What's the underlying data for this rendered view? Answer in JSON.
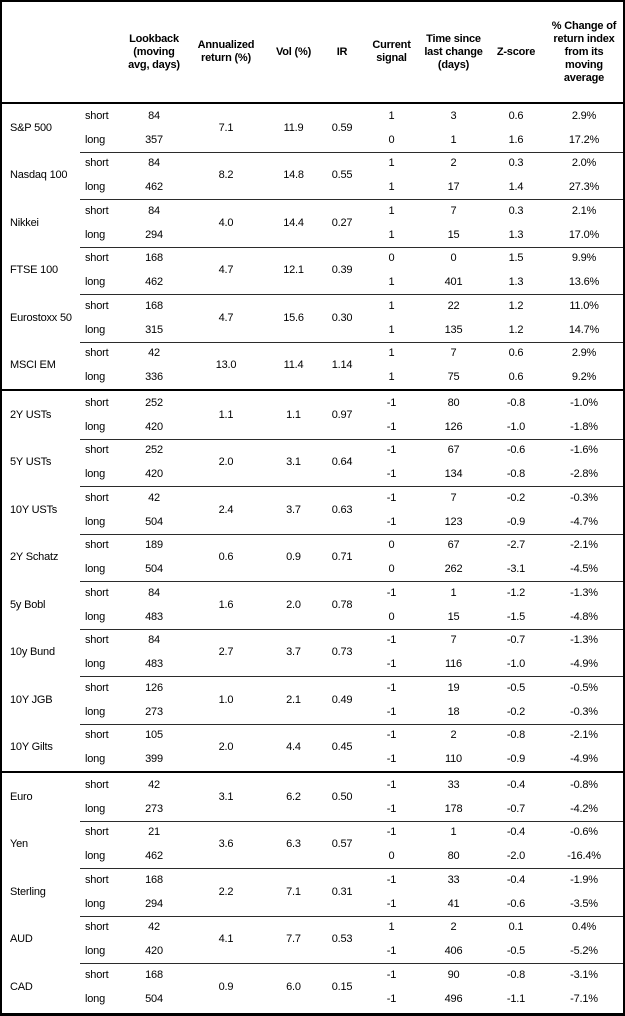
{
  "table": {
    "header": {
      "asset": "",
      "leg": "",
      "lookback": "Lookback (moving avg, days)",
      "annualized": "Annualized return (%)",
      "vol": "Vol (%)",
      "ir": "IR",
      "signal": "Current signal",
      "time_since": "Time since last change (days)",
      "zscore": "Z-score",
      "pct_change": "% Change of return index from its moving average"
    },
    "row_labels": [
      "short",
      "long"
    ],
    "sections": [
      {
        "id": "equities",
        "assets": [
          {
            "name": "S&P 500",
            "annualized_return": "7.1",
            "vol": "11.9",
            "ir": "0.59",
            "legs": [
              {
                "label": "short",
                "lookback": "84",
                "signal": "1",
                "time_since": "3",
                "zscore": "0.6",
                "pct_change": "2.9%"
              },
              {
                "label": "long",
                "lookback": "357",
                "signal": "0",
                "time_since": "1",
                "zscore": "1.6",
                "pct_change": "17.2%"
              }
            ]
          },
          {
            "name": "Nasdaq 100",
            "annualized_return": "8.2",
            "vol": "14.8",
            "ir": "0.55",
            "legs": [
              {
                "label": "short",
                "lookback": "84",
                "signal": "1",
                "time_since": "2",
                "zscore": "0.3",
                "pct_change": "2.0%"
              },
              {
                "label": "long",
                "lookback": "462",
                "signal": "1",
                "time_since": "17",
                "zscore": "1.4",
                "pct_change": "27.3%"
              }
            ]
          },
          {
            "name": "Nikkei",
            "annualized_return": "4.0",
            "vol": "14.4",
            "ir": "0.27",
            "legs": [
              {
                "label": "short",
                "lookback": "84",
                "signal": "1",
                "time_since": "7",
                "zscore": "0.3",
                "pct_change": "2.1%"
              },
              {
                "label": "long",
                "lookback": "294",
                "signal": "1",
                "time_since": "15",
                "zscore": "1.3",
                "pct_change": "17.0%"
              }
            ]
          },
          {
            "name": "FTSE 100",
            "annualized_return": "4.7",
            "vol": "12.1",
            "ir": "0.39",
            "legs": [
              {
                "label": "short",
                "lookback": "168",
                "signal": "0",
                "time_since": "0",
                "zscore": "1.5",
                "pct_change": "9.9%"
              },
              {
                "label": "long",
                "lookback": "462",
                "signal": "1",
                "time_since": "401",
                "zscore": "1.3",
                "pct_change": "13.6%"
              }
            ]
          },
          {
            "name": "Eurostoxx 50",
            "annualized_return": "4.7",
            "vol": "15.6",
            "ir": "0.30",
            "legs": [
              {
                "label": "short",
                "lookback": "168",
                "signal": "1",
                "time_since": "22",
                "zscore": "1.2",
                "pct_change": "11.0%"
              },
              {
                "label": "long",
                "lookback": "315",
                "signal": "1",
                "time_since": "135",
                "zscore": "1.2",
                "pct_change": "14.7%"
              }
            ]
          },
          {
            "name": "MSCI EM",
            "annualized_return": "13.0",
            "vol": "11.4",
            "ir": "1.14",
            "legs": [
              {
                "label": "short",
                "lookback": "42",
                "signal": "1",
                "time_since": "7",
                "zscore": "0.6",
                "pct_change": "2.9%"
              },
              {
                "label": "long",
                "lookback": "336",
                "signal": "1",
                "time_since": "75",
                "zscore": "0.6",
                "pct_change": "9.2%"
              }
            ]
          }
        ]
      },
      {
        "id": "bonds",
        "assets": [
          {
            "name": "2Y USTs",
            "annualized_return": "1.1",
            "vol": "1.1",
            "ir": "0.97",
            "legs": [
              {
                "label": "short",
                "lookback": "252",
                "signal": "-1",
                "time_since": "80",
                "zscore": "-0.8",
                "pct_change": "-1.0%"
              },
              {
                "label": "long",
                "lookback": "420",
                "signal": "-1",
                "time_since": "126",
                "zscore": "-1.0",
                "pct_change": "-1.8%"
              }
            ]
          },
          {
            "name": "5Y USTs",
            "annualized_return": "2.0",
            "vol": "3.1",
            "ir": "0.64",
            "legs": [
              {
                "label": "short",
                "lookback": "252",
                "signal": "-1",
                "time_since": "67",
                "zscore": "-0.6",
                "pct_change": "-1.6%"
              },
              {
                "label": "long",
                "lookback": "420",
                "signal": "-1",
                "time_since": "134",
                "zscore": "-0.8",
                "pct_change": "-2.8%"
              }
            ]
          },
          {
            "name": "10Y USTs",
            "annualized_return": "2.4",
            "vol": "3.7",
            "ir": "0.63",
            "legs": [
              {
                "label": "short",
                "lookback": "42",
                "signal": "-1",
                "time_since": "7",
                "zscore": "-0.2",
                "pct_change": "-0.3%"
              },
              {
                "label": "long",
                "lookback": "504",
                "signal": "-1",
                "time_since": "123",
                "zscore": "-0.9",
                "pct_change": "-4.7%"
              }
            ]
          },
          {
            "name": "2Y Schatz",
            "annualized_return": "0.6",
            "vol": "0.9",
            "ir": "0.71",
            "legs": [
              {
                "label": "short",
                "lookback": "189",
                "signal": "0",
                "time_since": "67",
                "zscore": "-2.7",
                "pct_change": "-2.1%"
              },
              {
                "label": "long",
                "lookback": "504",
                "signal": "0",
                "time_since": "262",
                "zscore": "-3.1",
                "pct_change": "-4.5%"
              }
            ]
          },
          {
            "name": "5y Bobl",
            "annualized_return": "1.6",
            "vol": "2.0",
            "ir": "0.78",
            "legs": [
              {
                "label": "short",
                "lookback": "84",
                "signal": "-1",
                "time_since": "1",
                "zscore": "-1.2",
                "pct_change": "-1.3%"
              },
              {
                "label": "long",
                "lookback": "483",
                "signal": "0",
                "time_since": "15",
                "zscore": "-1.5",
                "pct_change": "-4.8%"
              }
            ]
          },
          {
            "name": "10y Bund",
            "annualized_return": "2.7",
            "vol": "3.7",
            "ir": "0.73",
            "legs": [
              {
                "label": "short",
                "lookback": "84",
                "signal": "-1",
                "time_since": "7",
                "zscore": "-0.7",
                "pct_change": "-1.3%"
              },
              {
                "label": "long",
                "lookback": "483",
                "signal": "-1",
                "time_since": "116",
                "zscore": "-1.0",
                "pct_change": "-4.9%"
              }
            ]
          },
          {
            "name": "10Y JGB",
            "annualized_return": "1.0",
            "vol": "2.1",
            "ir": "0.49",
            "legs": [
              {
                "label": "short",
                "lookback": "126",
                "signal": "-1",
                "time_since": "19",
                "zscore": "-0.5",
                "pct_change": "-0.5%"
              },
              {
                "label": "long",
                "lookback": "273",
                "signal": "-1",
                "time_since": "18",
                "zscore": "-0.2",
                "pct_change": "-0.3%"
              }
            ]
          },
          {
            "name": "10Y Gilts",
            "annualized_return": "2.0",
            "vol": "4.4",
            "ir": "0.45",
            "legs": [
              {
                "label": "short",
                "lookback": "105",
                "signal": "-1",
                "time_since": "2",
                "zscore": "-0.8",
                "pct_change": "-2.1%"
              },
              {
                "label": "long",
                "lookback": "399",
                "signal": "-1",
                "time_since": "110",
                "zscore": "-0.9",
                "pct_change": "-4.9%"
              }
            ]
          }
        ]
      },
      {
        "id": "fx",
        "assets": [
          {
            "name": "Euro",
            "annualized_return": "3.1",
            "vol": "6.2",
            "ir": "0.50",
            "legs": [
              {
                "label": "short",
                "lookback": "42",
                "signal": "-1",
                "time_since": "33",
                "zscore": "-0.4",
                "pct_change": "-0.8%"
              },
              {
                "label": "long",
                "lookback": "273",
                "signal": "-1",
                "time_since": "178",
                "zscore": "-0.7",
                "pct_change": "-4.2%"
              }
            ]
          },
          {
            "name": "Yen",
            "annualized_return": "3.6",
            "vol": "6.3",
            "ir": "0.57",
            "legs": [
              {
                "label": "short",
                "lookback": "21",
                "signal": "-1",
                "time_since": "1",
                "zscore": "-0.4",
                "pct_change": "-0.6%"
              },
              {
                "label": "long",
                "lookback": "462",
                "signal": "0",
                "time_since": "80",
                "zscore": "-2.0",
                "pct_change": "-16.4%"
              }
            ]
          },
          {
            "name": "Sterling",
            "annualized_return": "2.2",
            "vol": "7.1",
            "ir": "0.31",
            "legs": [
              {
                "label": "short",
                "lookback": "168",
                "signal": "-1",
                "time_since": "33",
                "zscore": "-0.4",
                "pct_change": "-1.9%"
              },
              {
                "label": "long",
                "lookback": "294",
                "signal": "-1",
                "time_since": "41",
                "zscore": "-0.6",
                "pct_change": "-3.5%"
              }
            ]
          },
          {
            "name": "AUD",
            "annualized_return": "4.1",
            "vol": "7.7",
            "ir": "0.53",
            "legs": [
              {
                "label": "short",
                "lookback": "42",
                "signal": "1",
                "time_since": "2",
                "zscore": "0.1",
                "pct_change": "0.4%"
              },
              {
                "label": "long",
                "lookback": "420",
                "signal": "-1",
                "time_since": "406",
                "zscore": "-0.5",
                "pct_change": "-5.2%"
              }
            ]
          },
          {
            "name": "CAD",
            "annualized_return": "0.9",
            "vol": "6.0",
            "ir": "0.15",
            "legs": [
              {
                "label": "short",
                "lookback": "168",
                "signal": "-1",
                "time_since": "90",
                "zscore": "-0.8",
                "pct_change": "-3.1%"
              },
              {
                "label": "long",
                "lookback": "504",
                "signal": "-1",
                "time_since": "496",
                "zscore": "-1.1",
                "pct_change": "-7.1%"
              }
            ]
          }
        ]
      }
    ]
  }
}
